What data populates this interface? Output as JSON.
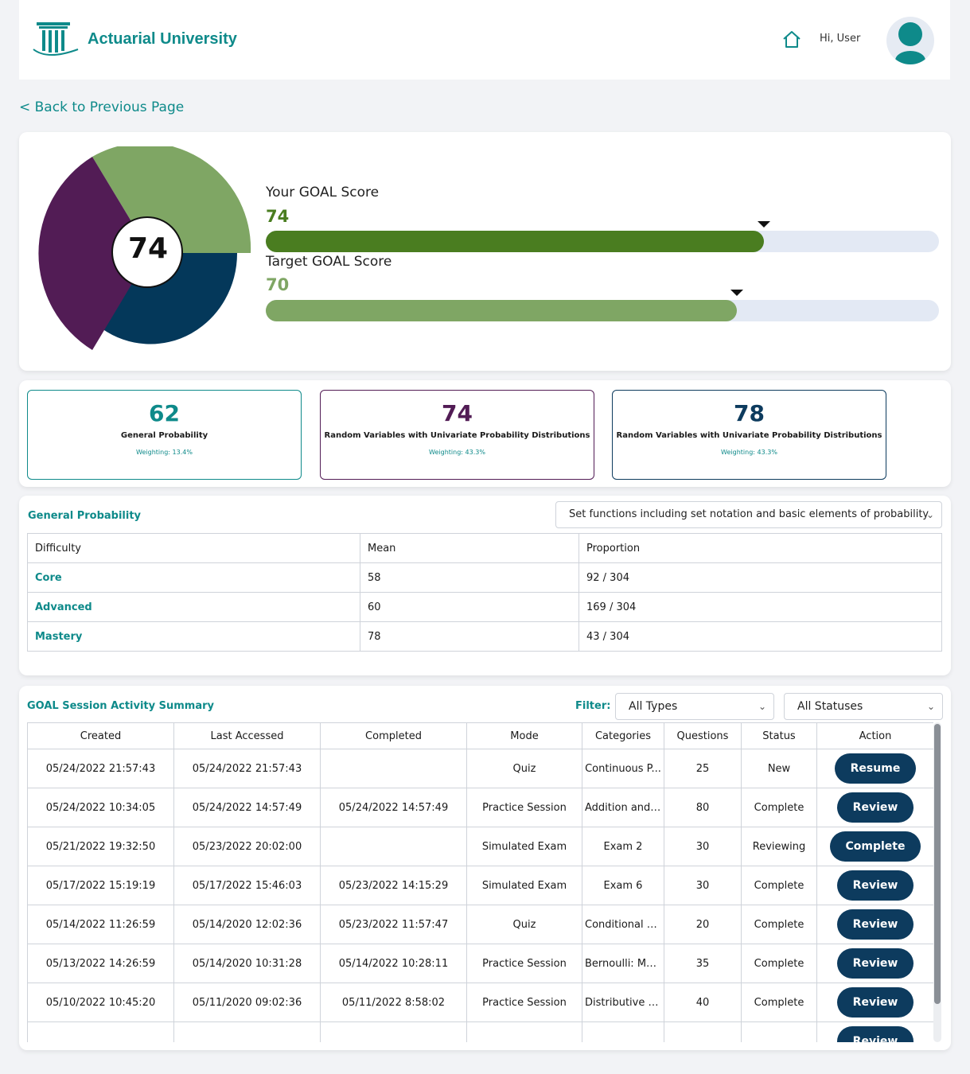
{
  "header": {
    "brand": "Actuarial University",
    "greeting": "Hi, User",
    "home_icon": "home-icon",
    "avatar_icon": "user-avatar-icon"
  },
  "back_link": "< Back to Previous Page",
  "score": {
    "center_value": "74",
    "your_label": "Your GOAL Score",
    "your_value": "74",
    "your_fraction": 0.74,
    "target_label": "Target GOAL Score",
    "target_value": "70",
    "target_fraction": 0.7,
    "colors": {
      "your": "#4a7d20",
      "target": "#7fa664",
      "track": "#e3e9f4",
      "purple": "#521c55",
      "navy": "#04385a",
      "green": "#7fa664"
    }
  },
  "topics": [
    {
      "score": "62",
      "name": "General Probability",
      "weighting": "Weighting: 13.4%",
      "color": "#0e8a8a"
    },
    {
      "score": "74",
      "name": "Random Variables with Univariate Probability Distributions",
      "weighting": "Weighting: 43.3%",
      "color": "#521c55"
    },
    {
      "score": "78",
      "name": "Random Variables with Univariate Probability Distributions",
      "weighting": "Weighting: 43.3%",
      "color": "#0d3b5e"
    }
  ],
  "difficulty": {
    "title": "General Probability",
    "select_value": "Set functions including set notation and basic elements of probability",
    "headers": [
      "Difficulty",
      "Mean",
      "Proportion"
    ],
    "rows": [
      {
        "level": "Core",
        "mean": "58",
        "proportion": "92 / 304"
      },
      {
        "level": "Advanced",
        "mean": "60",
        "proportion": "169 / 304"
      },
      {
        "level": "Mastery",
        "mean": "78",
        "proportion": "43 / 304"
      }
    ]
  },
  "activity": {
    "title": "GOAL Session Activity Summary",
    "filter_label": "Filter:",
    "type_filter": "All Types",
    "status_filter": "All Statuses",
    "headers": [
      "Created",
      "Last Accessed",
      "Completed",
      "Mode",
      "Categories",
      "Questions",
      "Status",
      "Action"
    ],
    "rows": [
      {
        "created": "05/24/2022 21:57:43",
        "accessed": "05/24/2022 21:57:43",
        "completed": "",
        "mode": "Quiz",
        "category": "Continuous P...",
        "questions": "25",
        "status": "New",
        "action": "Resume"
      },
      {
        "created": "05/24/2022 10:34:05",
        "accessed": "05/24/2022 14:57:49",
        "completed": "05/24/2022 14:57:49",
        "mode": "Practice Session",
        "category": "Addition and ...",
        "questions": "80",
        "status": "Complete",
        "action": "Review"
      },
      {
        "created": "05/21/2022 19:32:50",
        "accessed": "05/23/2022 20:02:00",
        "completed": "",
        "mode": "Simulated Exam",
        "category": "Exam 2",
        "questions": "30",
        "status": "Reviewing",
        "action": "Complete"
      },
      {
        "created": "05/17/2022 15:19:19",
        "accessed": "05/17/2022 15:46:03",
        "completed": "05/23/2022 14:15:29",
        "mode": "Simulated Exam",
        "category": "Exam 6",
        "questions": "30",
        "status": "Complete",
        "action": "Review"
      },
      {
        "created": "05/14/2022 11:26:59",
        "accessed": "05/14/2020 12:02:36",
        "completed": "05/23/2022 11:57:47",
        "mode": "Quiz",
        "category": "Conditional D...",
        "questions": "20",
        "status": "Complete",
        "action": "Review"
      },
      {
        "created": "05/13/2022 14:26:59",
        "accessed": "05/14/2020 10:31:28",
        "completed": "05/14/2022 10:28:11",
        "mode": "Practice Session",
        "category": "Bernoulli: MG...",
        "questions": "35",
        "status": "Complete",
        "action": "Review"
      },
      {
        "created": "05/10/2022 10:45:20",
        "accessed": "05/11/2020 09:02:36",
        "completed": "05/11/2022 8:58:02",
        "mode": "Practice Session",
        "category": "Distributive P...",
        "questions": "40",
        "status": "Complete",
        "action": "Review"
      },
      {
        "created": "",
        "accessed": "",
        "completed": "",
        "mode": "",
        "category": "",
        "questions": "",
        "status": "",
        "action": "Review"
      }
    ]
  }
}
